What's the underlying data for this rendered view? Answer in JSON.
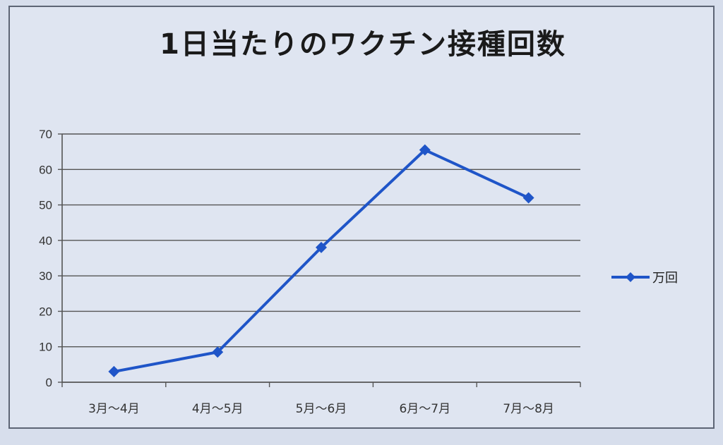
{
  "chart_data": {
    "type": "line",
    "title": "1日当たりのワクチン接種回数",
    "categories": [
      "3月～4月",
      "4月～5月",
      "5月～6月",
      "6月～7月",
      "7月～8月"
    ],
    "series": [
      {
        "name": "万回",
        "values": [
          3,
          8.5,
          38,
          65.5,
          52
        ],
        "color": "#1f55c8"
      }
    ],
    "yticks": [
      0,
      10,
      20,
      30,
      40,
      50,
      60,
      70
    ],
    "ylim": [
      0,
      70
    ],
    "grid": true,
    "legend_position": "right",
    "marker": "diamond"
  }
}
